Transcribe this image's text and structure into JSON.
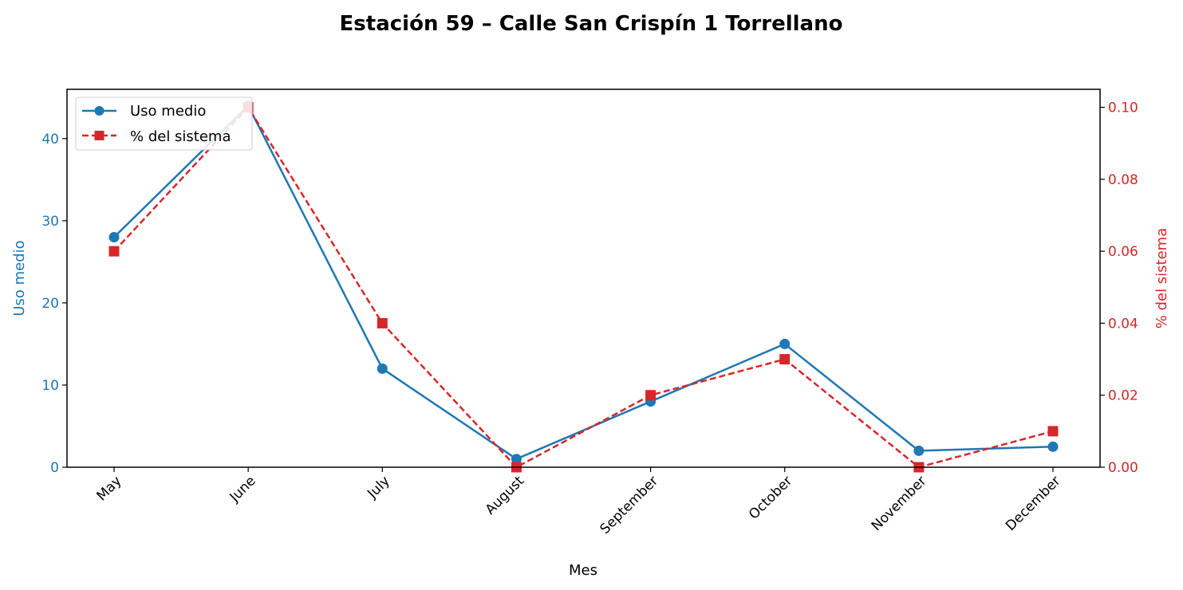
{
  "chart_data": {
    "type": "line",
    "title": "Estación 59 – Calle San Crispín 1 Torrellano",
    "xlabel": "Mes",
    "ylabel_left": "Uso medio",
    "ylabel_right": "% del sistema",
    "categories": [
      "May",
      "June",
      "July",
      "August",
      "September",
      "October",
      "November",
      "December"
    ],
    "ylim_left": [
      0,
      46
    ],
    "ylim_right": [
      0,
      0.105
    ],
    "yticks_left": [
      "0",
      "10",
      "20",
      "30",
      "40"
    ],
    "yticks_right": [
      "0.00",
      "0.02",
      "0.04",
      "0.06",
      "0.08",
      "0.10"
    ],
    "legend_position": "upper-left",
    "grid": false,
    "series": [
      {
        "name": "Uso medio",
        "axis": "left",
        "color": "#1f77b4",
        "marker": "circle",
        "linestyle": "solid",
        "values": [
          28,
          44,
          12,
          1,
          8,
          15,
          2,
          2.5
        ]
      },
      {
        "name": "% del sistema",
        "axis": "right",
        "color": "#d62728",
        "marker": "square",
        "linestyle": "dashed",
        "values": [
          0.06,
          0.1,
          0.04,
          0.0,
          0.02,
          0.03,
          0.0,
          0.01
        ]
      }
    ]
  }
}
